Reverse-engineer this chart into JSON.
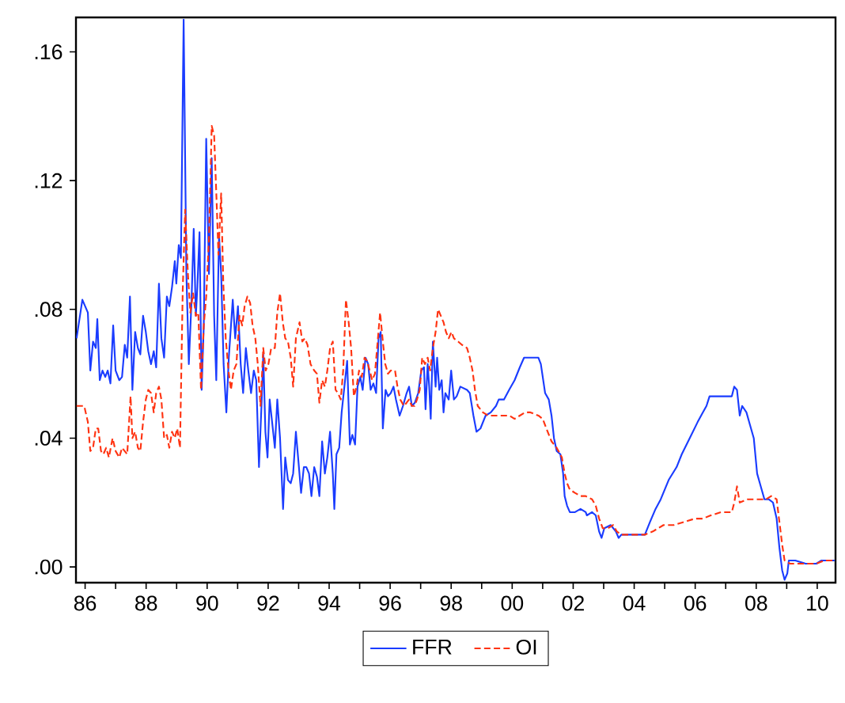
{
  "chart_data": {
    "type": "line",
    "xlim": [
      1985.7,
      2010.6
    ],
    "ylim": [
      -0.0049,
      0.1707
    ],
    "xticks": [
      {
        "value": 1986,
        "label": "86"
      },
      {
        "value": 1987,
        "label": null
      },
      {
        "value": 1988,
        "label": "88"
      },
      {
        "value": 1989,
        "label": null
      },
      {
        "value": 1990,
        "label": "90"
      },
      {
        "value": 1991,
        "label": null
      },
      {
        "value": 1992,
        "label": "92"
      },
      {
        "value": 1993,
        "label": null
      },
      {
        "value": 1994,
        "label": "94"
      },
      {
        "value": 1995,
        "label": null
      },
      {
        "value": 1996,
        "label": "96"
      },
      {
        "value": 1997,
        "label": null
      },
      {
        "value": 1998,
        "label": "98"
      },
      {
        "value": 1999,
        "label": null
      },
      {
        "value": 2000,
        "label": "00"
      },
      {
        "value": 2001,
        "label": null
      },
      {
        "value": 2002,
        "label": "02"
      },
      {
        "value": 2003,
        "label": null
      },
      {
        "value": 2004,
        "label": "04"
      },
      {
        "value": 2005,
        "label": null
      },
      {
        "value": 2006,
        "label": "06"
      },
      {
        "value": 2007,
        "label": null
      },
      {
        "value": 2008,
        "label": "08"
      },
      {
        "value": 2009,
        "label": null
      },
      {
        "value": 2010,
        "label": "10"
      }
    ],
    "yticks": [
      {
        "value": 0,
        "label": ".00"
      },
      {
        "value": 0.04,
        "label": ".04"
      },
      {
        "value": 0.08,
        "label": ".08"
      },
      {
        "value": 0.12,
        "label": ".12"
      },
      {
        "value": 0.16,
        "label": ".16"
      }
    ],
    "grid": false,
    "legend": "bottom",
    "marker": "none",
    "series": [
      {
        "name": "FFR",
        "color": "#1a3cff",
        "line_style": "solid",
        "x": [
          1985.72,
          1985.91,
          1986.09,
          1986.17,
          1986.26,
          1986.35,
          1986.4,
          1986.48,
          1986.57,
          1986.66,
          1986.74,
          1986.83,
          1986.92,
          1987.0,
          1987.12,
          1987.21,
          1987.3,
          1987.38,
          1987.47,
          1987.55,
          1987.64,
          1987.73,
          1987.81,
          1987.9,
          1987.99,
          1988.07,
          1988.16,
          1988.25,
          1988.33,
          1988.42,
          1988.5,
          1988.59,
          1988.68,
          1988.76,
          1988.85,
          1988.94,
          1988.99,
          1989.07,
          1989.14,
          1989.23,
          1989.32,
          1989.4,
          1989.49,
          1989.56,
          1989.63,
          1989.68,
          1989.75,
          1989.82,
          1989.89,
          1989.97,
          1990.06,
          1990.15,
          1990.23,
          1990.3,
          1990.39,
          1990.46,
          1990.54,
          1990.63,
          1990.71,
          1990.84,
          1990.92,
          1991.01,
          1991.1,
          1991.18,
          1991.27,
          1991.35,
          1991.44,
          1991.53,
          1991.61,
          1991.7,
          1991.79,
          1991.84,
          1991.91,
          1991.98,
          1992.05,
          1992.13,
          1992.22,
          1992.3,
          1992.39,
          1992.49,
          1992.56,
          1992.65,
          1992.74,
          1992.82,
          1992.91,
          1993.0,
          1993.08,
          1993.17,
          1993.25,
          1993.34,
          1993.42,
          1993.51,
          1993.6,
          1993.68,
          1993.77,
          1993.86,
          1993.94,
          1994.03,
          1994.12,
          1994.17,
          1994.24,
          1994.33,
          1994.41,
          1994.5,
          1994.59,
          1994.68,
          1994.76,
          1994.85,
          1994.93,
          1995.02,
          1995.1,
          1995.19,
          1995.28,
          1995.36,
          1995.45,
          1995.54,
          1995.62,
          1995.69,
          1995.76,
          1995.85,
          1995.93,
          1996.02,
          1996.11,
          1996.19,
          1996.31,
          1996.42,
          1996.54,
          1996.62,
          1996.71,
          1996.81,
          1996.92,
          1997.02,
          1997.11,
          1997.16,
          1997.23,
          1997.28,
          1997.33,
          1997.4,
          1997.49,
          1997.54,
          1997.61,
          1997.69,
          1997.75,
          1997.81,
          1997.92,
          1998.0,
          1998.09,
          1998.18,
          1998.3,
          1998.52,
          1998.61,
          1998.73,
          1998.83,
          1998.96,
          1999.13,
          1999.3,
          1999.47,
          1999.56,
          1999.73,
          1999.9,
          2000.08,
          2000.25,
          2000.39,
          2000.51,
          2000.68,
          2000.86,
          2000.94,
          2001.08,
          2001.2,
          2001.29,
          2001.37,
          2001.46,
          2001.58,
          2001.67,
          2001.72,
          2001.8,
          2001.89,
          2002.06,
          2002.24,
          2002.41,
          2002.45,
          2002.62,
          2002.74,
          2002.85,
          2002.93,
          2003.02,
          2003.23,
          2003.4,
          2003.49,
          2003.58,
          2003.92,
          2004.35,
          2004.52,
          2004.7,
          2004.87,
          2005.13,
          2005.39,
          2005.56,
          2005.82,
          2006.08,
          2006.25,
          2006.37,
          2006.47,
          2006.68,
          2006.94,
          2007.2,
          2007.28,
          2007.37,
          2007.46,
          2007.54,
          2007.68,
          2007.8,
          2007.92,
          2008.03,
          2008.15,
          2008.27,
          2008.41,
          2008.55,
          2008.67,
          2008.76,
          2008.85,
          2008.93,
          2009.02,
          2009.07,
          2009.28,
          2009.62,
          2009.97,
          2010.14,
          2010.26,
          2010.49,
          2010.57
        ],
        "values": [
          0.071,
          0.083,
          0.079,
          0.061,
          0.07,
          0.068,
          0.077,
          0.058,
          0.061,
          0.059,
          0.061,
          0.057,
          0.075,
          0.061,
          0.058,
          0.059,
          0.069,
          0.065,
          0.084,
          0.055,
          0.073,
          0.068,
          0.066,
          0.078,
          0.073,
          0.067,
          0.063,
          0.067,
          0.062,
          0.088,
          0.071,
          0.065,
          0.084,
          0.081,
          0.087,
          0.095,
          0.088,
          0.1,
          0.096,
          0.17,
          0.091,
          0.063,
          0.083,
          0.105,
          0.078,
          0.087,
          0.104,
          0.055,
          0.075,
          0.133,
          0.091,
          0.127,
          0.078,
          0.058,
          0.103,
          0.091,
          0.063,
          0.048,
          0.065,
          0.083,
          0.071,
          0.081,
          0.063,
          0.054,
          0.068,
          0.061,
          0.054,
          0.061,
          0.058,
          0.031,
          0.052,
          0.066,
          0.042,
          0.034,
          0.052,
          0.045,
          0.037,
          0.052,
          0.04,
          0.018,
          0.034,
          0.027,
          0.026,
          0.029,
          0.042,
          0.032,
          0.023,
          0.031,
          0.031,
          0.029,
          0.022,
          0.031,
          0.028,
          0.022,
          0.039,
          0.029,
          0.034,
          0.042,
          0.029,
          0.018,
          0.035,
          0.037,
          0.048,
          0.056,
          0.064,
          0.038,
          0.041,
          0.038,
          0.056,
          0.059,
          0.055,
          0.065,
          0.063,
          0.055,
          0.057,
          0.054,
          0.071,
          0.073,
          0.043,
          0.055,
          0.053,
          0.054,
          0.056,
          0.052,
          0.047,
          0.05,
          0.054,
          0.056,
          0.05,
          0.051,
          0.054,
          0.061,
          0.062,
          0.049,
          0.063,
          0.056,
          0.046,
          0.07,
          0.056,
          0.065,
          0.055,
          0.058,
          0.048,
          0.054,
          0.052,
          0.061,
          0.052,
          0.053,
          0.056,
          0.055,
          0.054,
          0.047,
          0.042,
          0.043,
          0.047,
          0.048,
          0.05,
          0.052,
          0.052,
          0.055,
          0.058,
          0.062,
          0.065,
          0.065,
          0.065,
          0.065,
          0.063,
          0.054,
          0.052,
          0.047,
          0.04,
          0.036,
          0.035,
          0.029,
          0.022,
          0.019,
          0.017,
          0.017,
          0.018,
          0.017,
          0.016,
          0.017,
          0.016,
          0.011,
          0.009,
          0.012,
          0.013,
          0.011,
          0.009,
          0.01,
          0.01,
          0.01,
          0.014,
          0.018,
          0.021,
          0.027,
          0.031,
          0.035,
          0.04,
          0.045,
          0.048,
          0.05,
          0.053,
          0.053,
          0.053,
          0.053,
          0.056,
          0.055,
          0.047,
          0.05,
          0.048,
          0.044,
          0.04,
          0.029,
          0.025,
          0.021,
          0.021,
          0.02,
          0.015,
          0.006,
          -0.001,
          -0.004,
          -0.002,
          0.002,
          0.002,
          0.001,
          0.001,
          0.002,
          0.002,
          0.002,
          0.002
        ]
      },
      {
        "name": "OI",
        "color": "#ff3311",
        "line_style": "dashed",
        "x": [
          1985.72,
          1985.97,
          1986.09,
          1986.17,
          1986.26,
          1986.35,
          1986.43,
          1986.52,
          1986.6,
          1986.69,
          1986.78,
          1986.9,
          1987.0,
          1987.12,
          1987.21,
          1987.38,
          1987.49,
          1987.55,
          1987.64,
          1987.73,
          1987.81,
          1987.9,
          1987.99,
          1988.07,
          1988.16,
          1988.25,
          1988.33,
          1988.42,
          1988.5,
          1988.59,
          1988.68,
          1988.76,
          1988.85,
          1988.94,
          1989.02,
          1989.11,
          1989.2,
          1989.28,
          1989.37,
          1989.45,
          1989.54,
          1989.63,
          1989.71,
          1989.8,
          1989.89,
          1989.97,
          1990.06,
          1990.15,
          1990.23,
          1990.32,
          1990.37,
          1990.46,
          1990.53,
          1990.61,
          1990.7,
          1990.78,
          1990.87,
          1990.96,
          1991.06,
          1991.15,
          1991.23,
          1991.32,
          1991.41,
          1991.49,
          1991.58,
          1991.66,
          1991.75,
          1991.84,
          1991.92,
          1992.01,
          1992.1,
          1992.22,
          1992.3,
          1992.39,
          1992.48,
          1992.56,
          1992.65,
          1992.74,
          1992.82,
          1992.91,
          1993.03,
          1993.12,
          1993.2,
          1993.29,
          1993.39,
          1993.51,
          1993.6,
          1993.68,
          1993.77,
          1993.86,
          1993.94,
          1994.03,
          1994.12,
          1994.21,
          1994.29,
          1994.38,
          1994.46,
          1994.55,
          1994.64,
          1994.72,
          1994.81,
          1994.9,
          1994.98,
          1995.07,
          1995.16,
          1995.24,
          1995.33,
          1995.41,
          1995.5,
          1995.59,
          1995.67,
          1995.76,
          1995.84,
          1995.93,
          1996.02,
          1996.16,
          1996.24,
          1996.33,
          1996.45,
          1996.54,
          1996.62,
          1996.71,
          1996.8,
          1996.88,
          1996.97,
          1997.05,
          1997.14,
          1997.23,
          1997.31,
          1997.4,
          1997.49,
          1997.57,
          1997.66,
          1997.75,
          1997.83,
          1997.92,
          1998.01,
          1998.09,
          1998.23,
          1998.35,
          1998.52,
          1998.61,
          1998.7,
          1998.78,
          1998.87,
          1999.04,
          1999.21,
          1999.39,
          1999.56,
          1999.73,
          1999.91,
          2000.08,
          2000.25,
          2000.42,
          2000.6,
          2000.86,
          2001.0,
          2001.12,
          2001.29,
          2001.46,
          2001.63,
          2001.72,
          2001.8,
          2001.89,
          2002.06,
          2002.24,
          2002.41,
          2002.62,
          2002.74,
          2002.85,
          2002.97,
          2003.14,
          2003.31,
          2003.43,
          2003.58,
          2004.35,
          2004.61,
          2004.96,
          2005.3,
          2005.65,
          2005.99,
          2006.25,
          2006.51,
          2006.85,
          2007.2,
          2007.28,
          2007.37,
          2007.46,
          2007.72,
          2008.06,
          2008.32,
          2008.49,
          2008.67,
          2008.76,
          2008.85,
          2008.93,
          2009.11,
          2009.62,
          2009.97,
          2010.23,
          2010.57
        ],
        "values": [
          0.05,
          0.05,
          0.045,
          0.036,
          0.037,
          0.043,
          0.043,
          0.036,
          0.035,
          0.037,
          0.034,
          0.04,
          0.036,
          0.034,
          0.037,
          0.035,
          0.053,
          0.04,
          0.042,
          0.037,
          0.036,
          0.045,
          0.052,
          0.055,
          0.054,
          0.048,
          0.054,
          0.056,
          0.052,
          0.04,
          0.041,
          0.037,
          0.042,
          0.04,
          0.043,
          0.037,
          0.086,
          0.111,
          0.091,
          0.079,
          0.085,
          0.078,
          0.079,
          0.055,
          0.075,
          0.084,
          0.102,
          0.137,
          0.134,
          0.111,
          0.097,
          0.116,
          0.088,
          0.071,
          0.061,
          0.055,
          0.061,
          0.063,
          0.078,
          0.075,
          0.081,
          0.084,
          0.082,
          0.075,
          0.071,
          0.063,
          0.05,
          0.068,
          0.061,
          0.063,
          0.068,
          0.068,
          0.079,
          0.085,
          0.076,
          0.071,
          0.07,
          0.065,
          0.056,
          0.071,
          0.076,
          0.07,
          0.071,
          0.069,
          0.063,
          0.061,
          0.06,
          0.051,
          0.058,
          0.056,
          0.061,
          0.068,
          0.07,
          0.055,
          0.054,
          0.052,
          0.061,
          0.083,
          0.076,
          0.068,
          0.053,
          0.056,
          0.061,
          0.059,
          0.065,
          0.064,
          0.061,
          0.058,
          0.06,
          0.07,
          0.079,
          0.07,
          0.063,
          0.06,
          0.061,
          0.061,
          0.056,
          0.052,
          0.05,
          0.051,
          0.052,
          0.05,
          0.05,
          0.052,
          0.055,
          0.065,
          0.063,
          0.065,
          0.061,
          0.068,
          0.073,
          0.08,
          0.078,
          0.076,
          0.073,
          0.071,
          0.073,
          0.071,
          0.07,
          0.069,
          0.068,
          0.065,
          0.061,
          0.055,
          0.05,
          0.048,
          0.047,
          0.047,
          0.047,
          0.047,
          0.047,
          0.046,
          0.047,
          0.048,
          0.048,
          0.047,
          0.046,
          0.043,
          0.039,
          0.037,
          0.034,
          0.029,
          0.026,
          0.024,
          0.023,
          0.022,
          0.022,
          0.021,
          0.019,
          0.015,
          0.012,
          0.012,
          0.013,
          0.011,
          0.01,
          0.01,
          0.011,
          0.013,
          0.013,
          0.014,
          0.015,
          0.015,
          0.016,
          0.017,
          0.017,
          0.02,
          0.025,
          0.02,
          0.021,
          0.021,
          0.021,
          0.022,
          0.021,
          0.014,
          0.007,
          0.002,
          0.001,
          0.001,
          0.001,
          0.002,
          0.002
        ]
      }
    ]
  }
}
